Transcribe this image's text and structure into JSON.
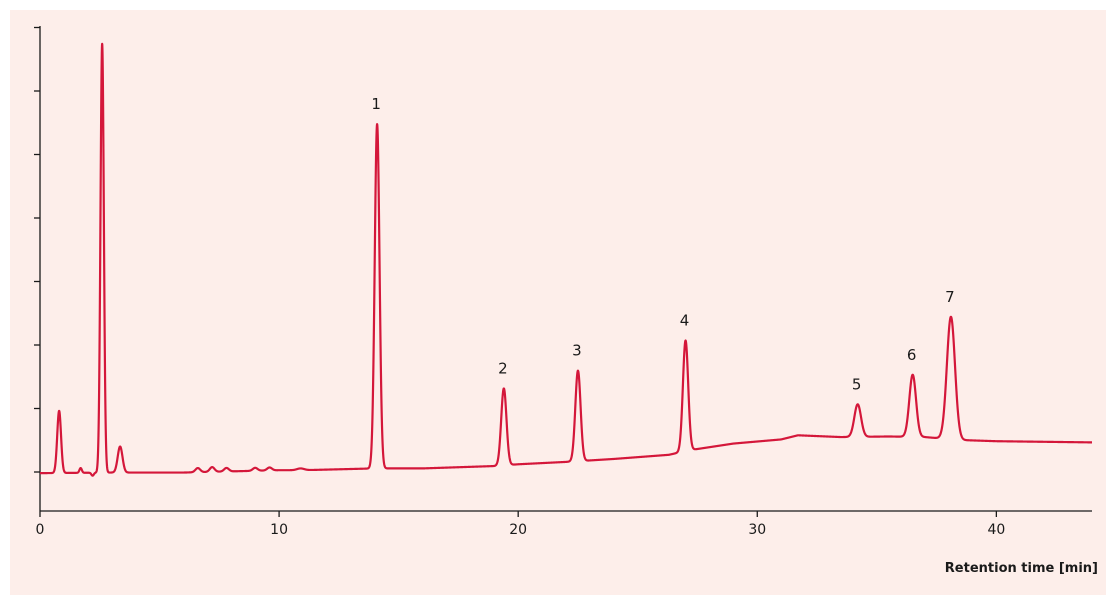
{
  "chart_data": {
    "type": "line",
    "title": "",
    "xlabel": "Retention time [min]",
    "ylabel": "",
    "xlim": [
      0,
      44
    ],
    "ylim": [
      -7,
      75
    ],
    "x_ticks": [
      0,
      10,
      20,
      30,
      40
    ],
    "y_tick_count": 8,
    "grid": false,
    "line_color": "#d4173a",
    "baseline": [
      [
        0,
        -0.6
      ],
      [
        3,
        -0.5
      ],
      [
        6,
        -0.5
      ],
      [
        10,
        -0.1
      ],
      [
        11,
        -0.1
      ],
      [
        14,
        0.2
      ],
      [
        16,
        0.2
      ],
      [
        19,
        0.6
      ],
      [
        20,
        0.9
      ],
      [
        22,
        1.3
      ],
      [
        24,
        1.8
      ],
      [
        26.3,
        2.5
      ],
      [
        27.2,
        3.3
      ],
      [
        29,
        4.4
      ],
      [
        31,
        5.1
      ],
      [
        31.7,
        5.8
      ],
      [
        33.5,
        5.5
      ],
      [
        35.5,
        5.6
      ],
      [
        37,
        5.5
      ],
      [
        38.5,
        5.0
      ],
      [
        40,
        4.8
      ],
      [
        44,
        4.6
      ]
    ],
    "peaks": [
      {
        "rt": 0.8,
        "height": 10.5,
        "width": 0.08
      },
      {
        "rt": 1.7,
        "height": 0.8,
        "width": 0.05
      },
      {
        "rt": 2.2,
        "height": -0.5,
        "width": 0.05
      },
      {
        "rt": 2.6,
        "height": 72.5,
        "width": 0.07
      },
      {
        "rt": 3.35,
        "height": 4.4,
        "width": 0.1
      },
      {
        "rt": 6.6,
        "height": 0.7,
        "width": 0.1
      },
      {
        "rt": 7.2,
        "height": 0.8,
        "width": 0.1
      },
      {
        "rt": 7.8,
        "height": 0.6,
        "width": 0.1
      },
      {
        "rt": 9.0,
        "height": 0.5,
        "width": 0.1
      },
      {
        "rt": 9.6,
        "height": 0.5,
        "width": 0.1
      },
      {
        "rt": 10.9,
        "height": 0.3,
        "width": 0.15
      },
      {
        "rt": 14.1,
        "label": "1",
        "height": 58.2,
        "width": 0.1
      },
      {
        "rt": 19.4,
        "label": "2",
        "height": 13.0,
        "width": 0.11
      },
      {
        "rt": 22.5,
        "label": "3",
        "height": 15.3,
        "width": 0.11
      },
      {
        "rt": 27.0,
        "label": "4",
        "height": 18.7,
        "width": 0.11
      },
      {
        "rt": 34.2,
        "label": "5",
        "height": 5.5,
        "width": 0.14
      },
      {
        "rt": 36.5,
        "label": "6",
        "height": 10.5,
        "width": 0.14
      },
      {
        "rt": 38.1,
        "label": "7",
        "height": 20.7,
        "width": 0.17
      }
    ]
  }
}
